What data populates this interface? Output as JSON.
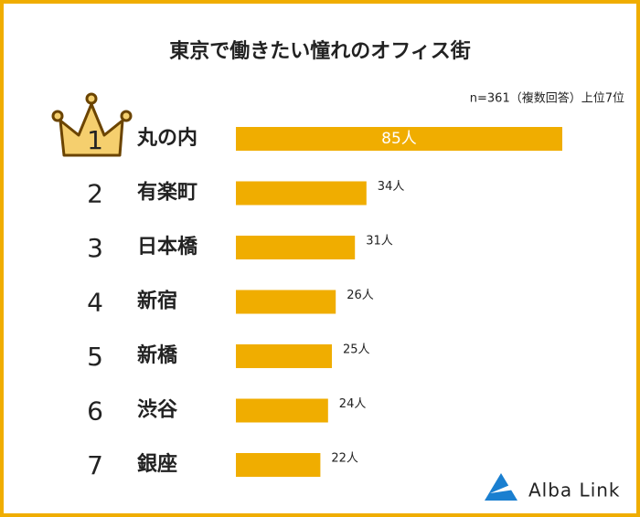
{
  "chart_data": {
    "type": "bar",
    "orientation": "horizontal",
    "title": "東京で働きたい憧れのオフィス街",
    "subtitle": "n=361（複数回答）上位7位",
    "ranks": [
      "1",
      "2",
      "3",
      "4",
      "5",
      "6",
      "7"
    ],
    "categories": [
      "丸の内",
      "有楽町",
      "日本橋",
      "新宿",
      "新橋",
      "渋谷",
      "銀座"
    ],
    "values": [
      85,
      34,
      31,
      26,
      25,
      24,
      22
    ],
    "value_labels": [
      "85人",
      "34人",
      "31人",
      "26人",
      "25人",
      "24人",
      "22人"
    ],
    "color": "#f0ad00",
    "logo": "Alba Link"
  }
}
